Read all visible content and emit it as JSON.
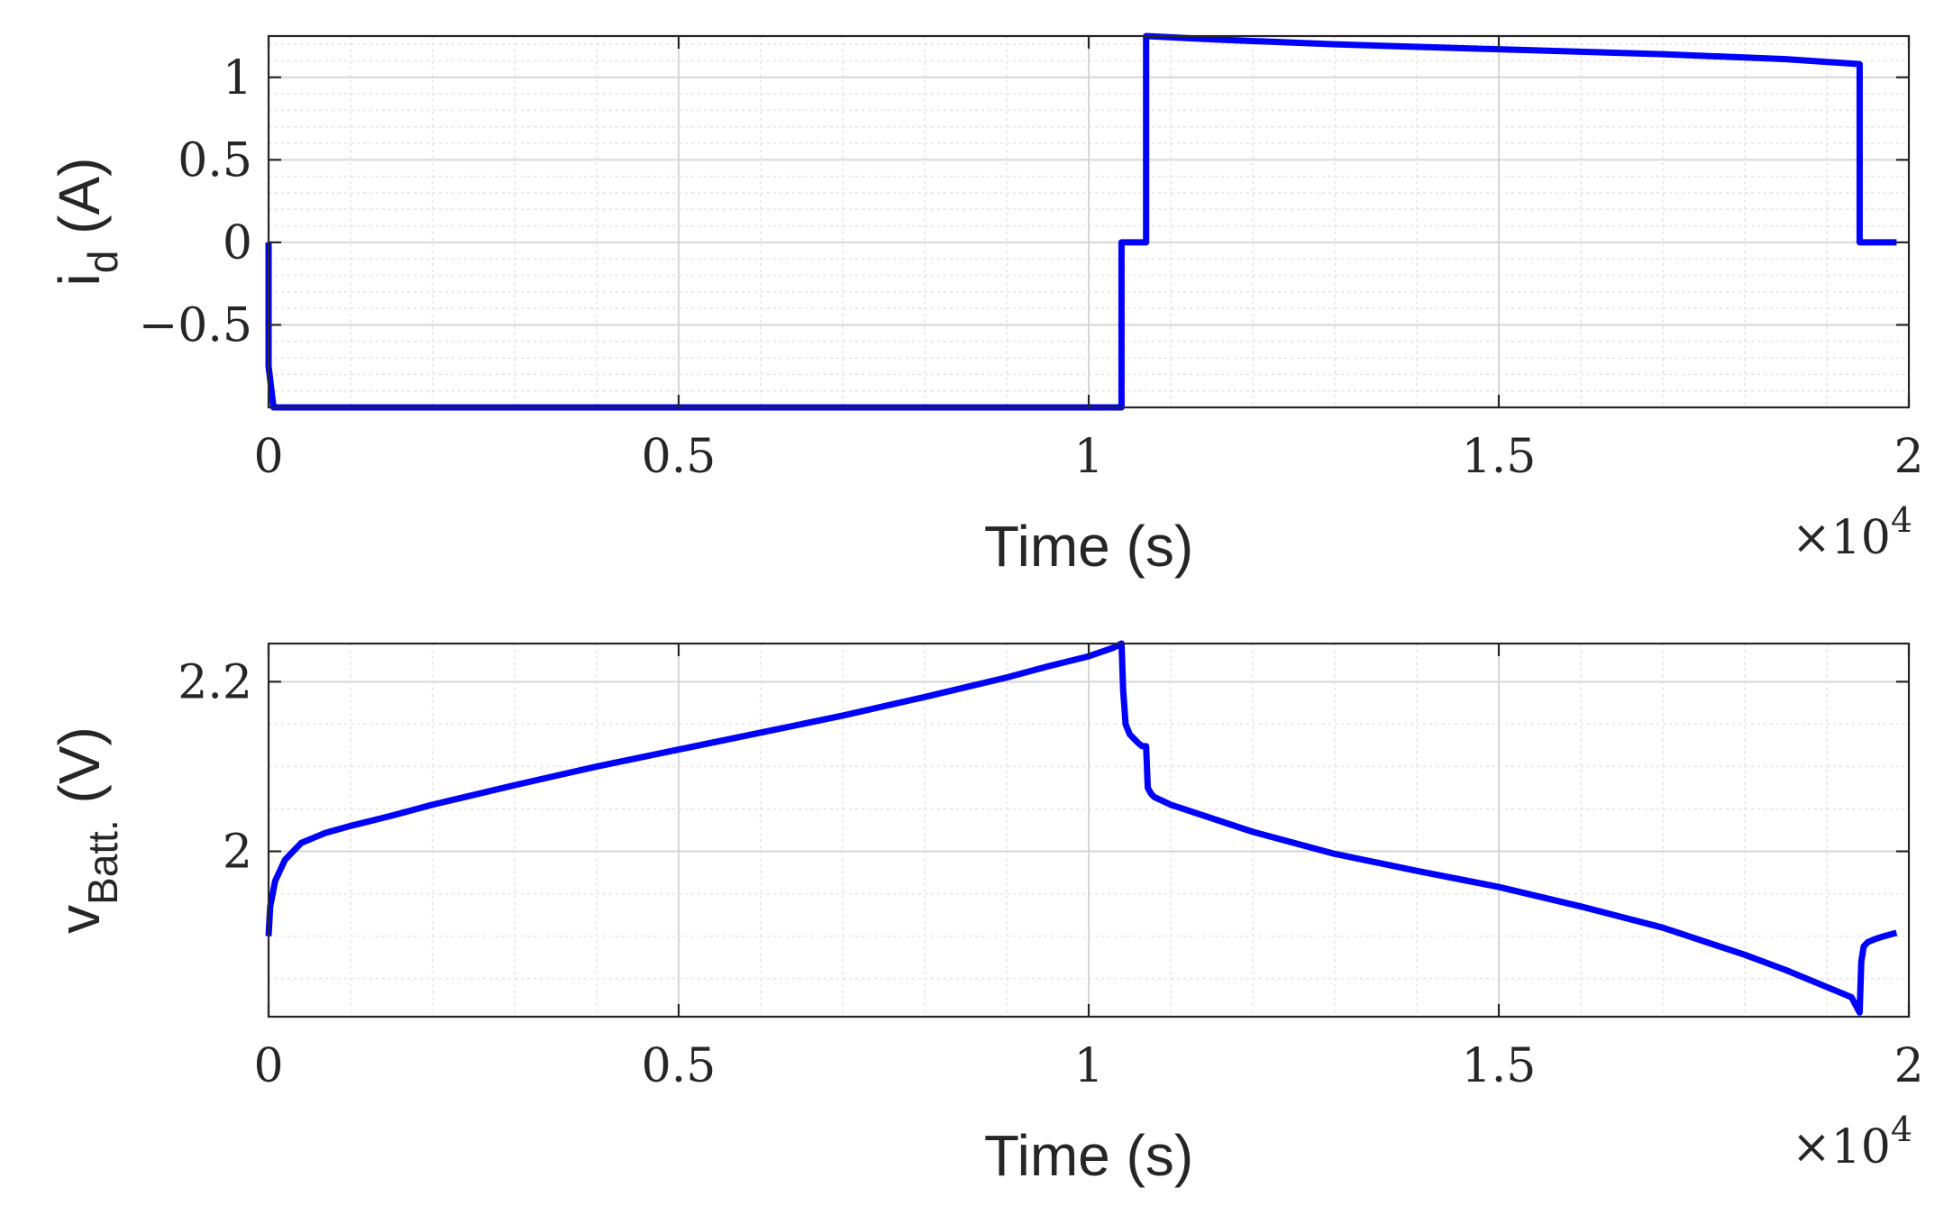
{
  "chart_data": [
    {
      "type": "line",
      "xlabel": "Time (s)",
      "xlabel_exponent": {
        "base": "×10",
        "power": "4"
      },
      "ylabel": {
        "main": "i",
        "sub": "d",
        "unit": " (A)"
      },
      "xlim": [
        0,
        20000
      ],
      "ylim": [
        -1,
        1.25
      ],
      "xticks": [
        0,
        5000,
        10000,
        15000,
        20000
      ],
      "xtick_labels": [
        "0",
        "0.5",
        "1",
        "1.5",
        "2"
      ],
      "yticks": [
        -0.5,
        0,
        0.5,
        1
      ],
      "ytick_labels": [
        "−0.5",
        "0",
        "0.5",
        "1"
      ],
      "grid": true,
      "minor_grid": true,
      "color": "#0000ff",
      "series": [
        {
          "x": [
            0,
            0,
            60,
            10400,
            10400,
            10700,
            10700,
            11500,
            13000,
            15000,
            17000,
            18500,
            19400,
            19400,
            19850
          ],
          "y": [
            0,
            -0.75,
            -1,
            -1,
            0,
            0,
            1.25,
            1.23,
            1.2,
            1.17,
            1.14,
            1.11,
            1.08,
            0,
            0
          ]
        }
      ]
    },
    {
      "type": "line",
      "xlabel": "Time (s)",
      "xlabel_exponent": {
        "base": "×10",
        "power": "4"
      },
      "ylabel": {
        "main": "v",
        "sub": "Batt.",
        "unit": " (V)"
      },
      "xlim": [
        0,
        20000
      ],
      "ylim": [
        1.805,
        2.245
      ],
      "xticks": [
        0,
        5000,
        10000,
        15000,
        20000
      ],
      "xtick_labels": [
        "0",
        "0.5",
        "1",
        "1.5",
        "2"
      ],
      "yticks": [
        2,
        2.2
      ],
      "ytick_labels": [
        "2",
        "2.2"
      ],
      "grid": true,
      "minor_grid": true,
      "color": "#0000ff",
      "series": [
        {
          "x": [
            0,
            20,
            80,
            200,
            400,
            700,
            1000,
            1500,
            2000,
            3000,
            4000,
            5000,
            6000,
            7000,
            8000,
            9000,
            9500,
            10000,
            10300,
            10400,
            10420,
            10450,
            10500,
            10600,
            10650,
            10680,
            10700,
            10720,
            10760,
            10800,
            11000,
            12000,
            13000,
            14000,
            15000,
            16000,
            17000,
            18000,
            18500,
            19000,
            19300,
            19400,
            19420,
            19450,
            19500,
            19600,
            19700,
            19850
          ],
          "y": [
            1.9,
            1.935,
            1.965,
            1.99,
            2.01,
            2.022,
            2.03,
            2.042,
            2.055,
            2.078,
            2.1,
            2.12,
            2.14,
            2.16,
            2.182,
            2.205,
            2.218,
            2.23,
            2.24,
            2.245,
            2.19,
            2.15,
            2.138,
            2.128,
            2.124,
            2.124,
            2.124,
            2.075,
            2.068,
            2.064,
            2.055,
            2.023,
            1.997,
            1.977,
            1.958,
            1.935,
            1.91,
            1.878,
            1.86,
            1.84,
            1.828,
            1.81,
            1.87,
            1.888,
            1.893,
            1.897,
            1.9,
            1.904
          ]
        }
      ]
    }
  ]
}
